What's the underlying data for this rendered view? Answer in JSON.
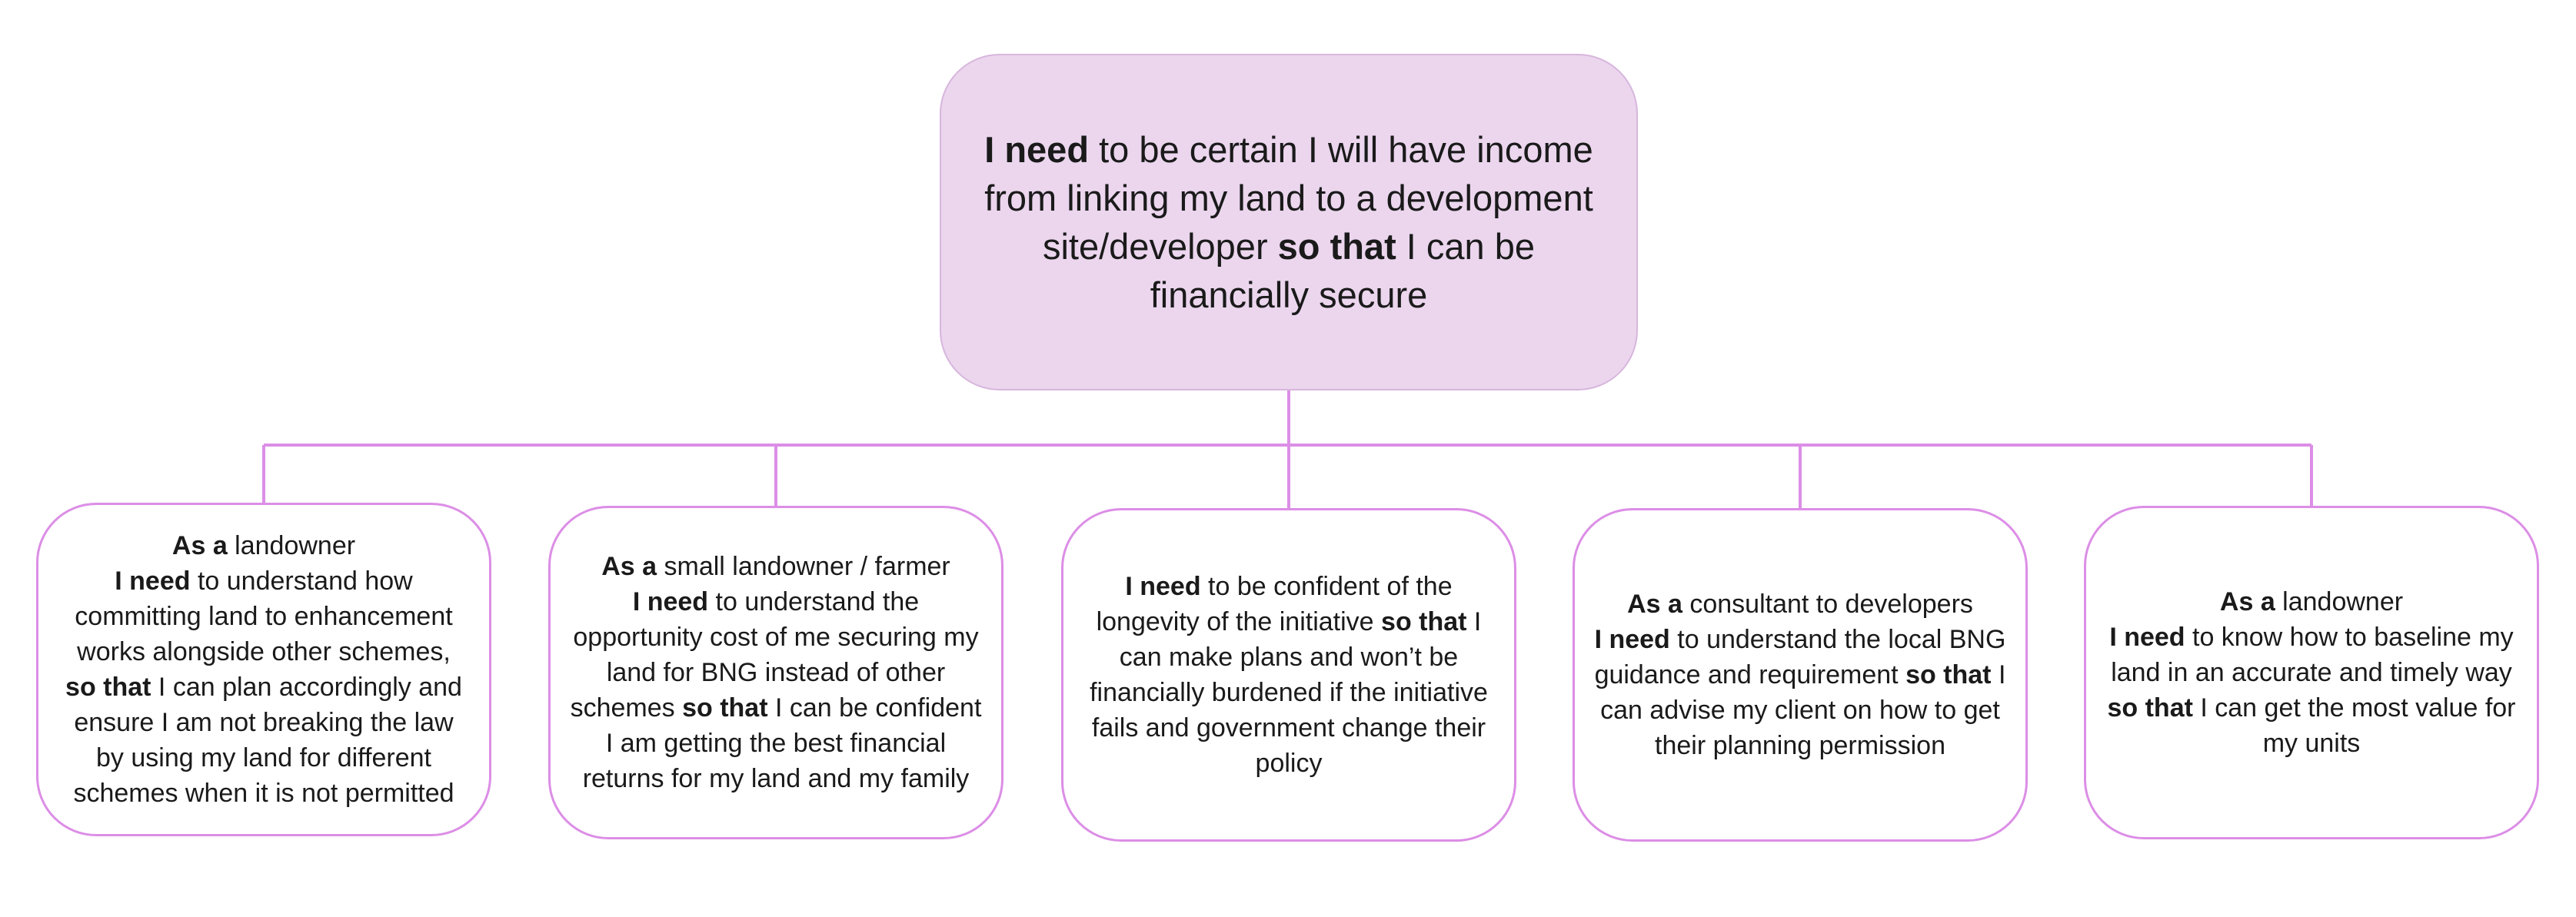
{
  "colors": {
    "root_fill": "#ebd6ee",
    "root_border": "#d8b6dd",
    "child_border": "#dc8ee6",
    "connector": "#dc8ee6"
  },
  "root": {
    "bold_need": "I need",
    "text_need": " to be certain I will have income from linking my land to a development site/developer ",
    "bold_so_that": "so that",
    "text_so_that": " I can be financially secure"
  },
  "children": [
    {
      "as_a_label": "As a",
      "as_a_text": " landowner",
      "need_label": "I need",
      "need_text": " to understand how committing land to enhancement works alongside other schemes,",
      "so_that_label": "so that",
      "so_that_text": " I can plan accordingly and ensure I am not breaking the law by using my land for different schemes when it is not permitted"
    },
    {
      "as_a_label": "As a",
      "as_a_text": " small landowner / farmer",
      "need_label": "I need",
      "need_text": " to understand the opportunity cost of me securing my land for BNG instead of other schemes ",
      "so_that_label": "so that",
      "so_that_text": " I can be confident I am getting the best financial returns for my land and my family"
    },
    {
      "need_label": "I need",
      "need_text": " to be confident of the longevity of the initiative ",
      "so_that_label": "so that",
      "so_that_text": " I can make plans and won’t be financially burdened if the initiative fails and government change their policy"
    },
    {
      "as_a_label": "As a",
      "as_a_text": " consultant to developers",
      "need_label": "I need",
      "need_text": " to understand the local BNG guidance and requirement ",
      "so_that_label": "so that",
      "so_that_text": " I can advise my client on how to get their planning permission"
    },
    {
      "as_a_label": "As a",
      "as_a_text": " landowner",
      "need_label": "I need",
      "need_text": " to know how to baseline my land in an accurate and timely way ",
      "so_that_label": "so that",
      "so_that_text": " I can get the most value for my units"
    }
  ]
}
